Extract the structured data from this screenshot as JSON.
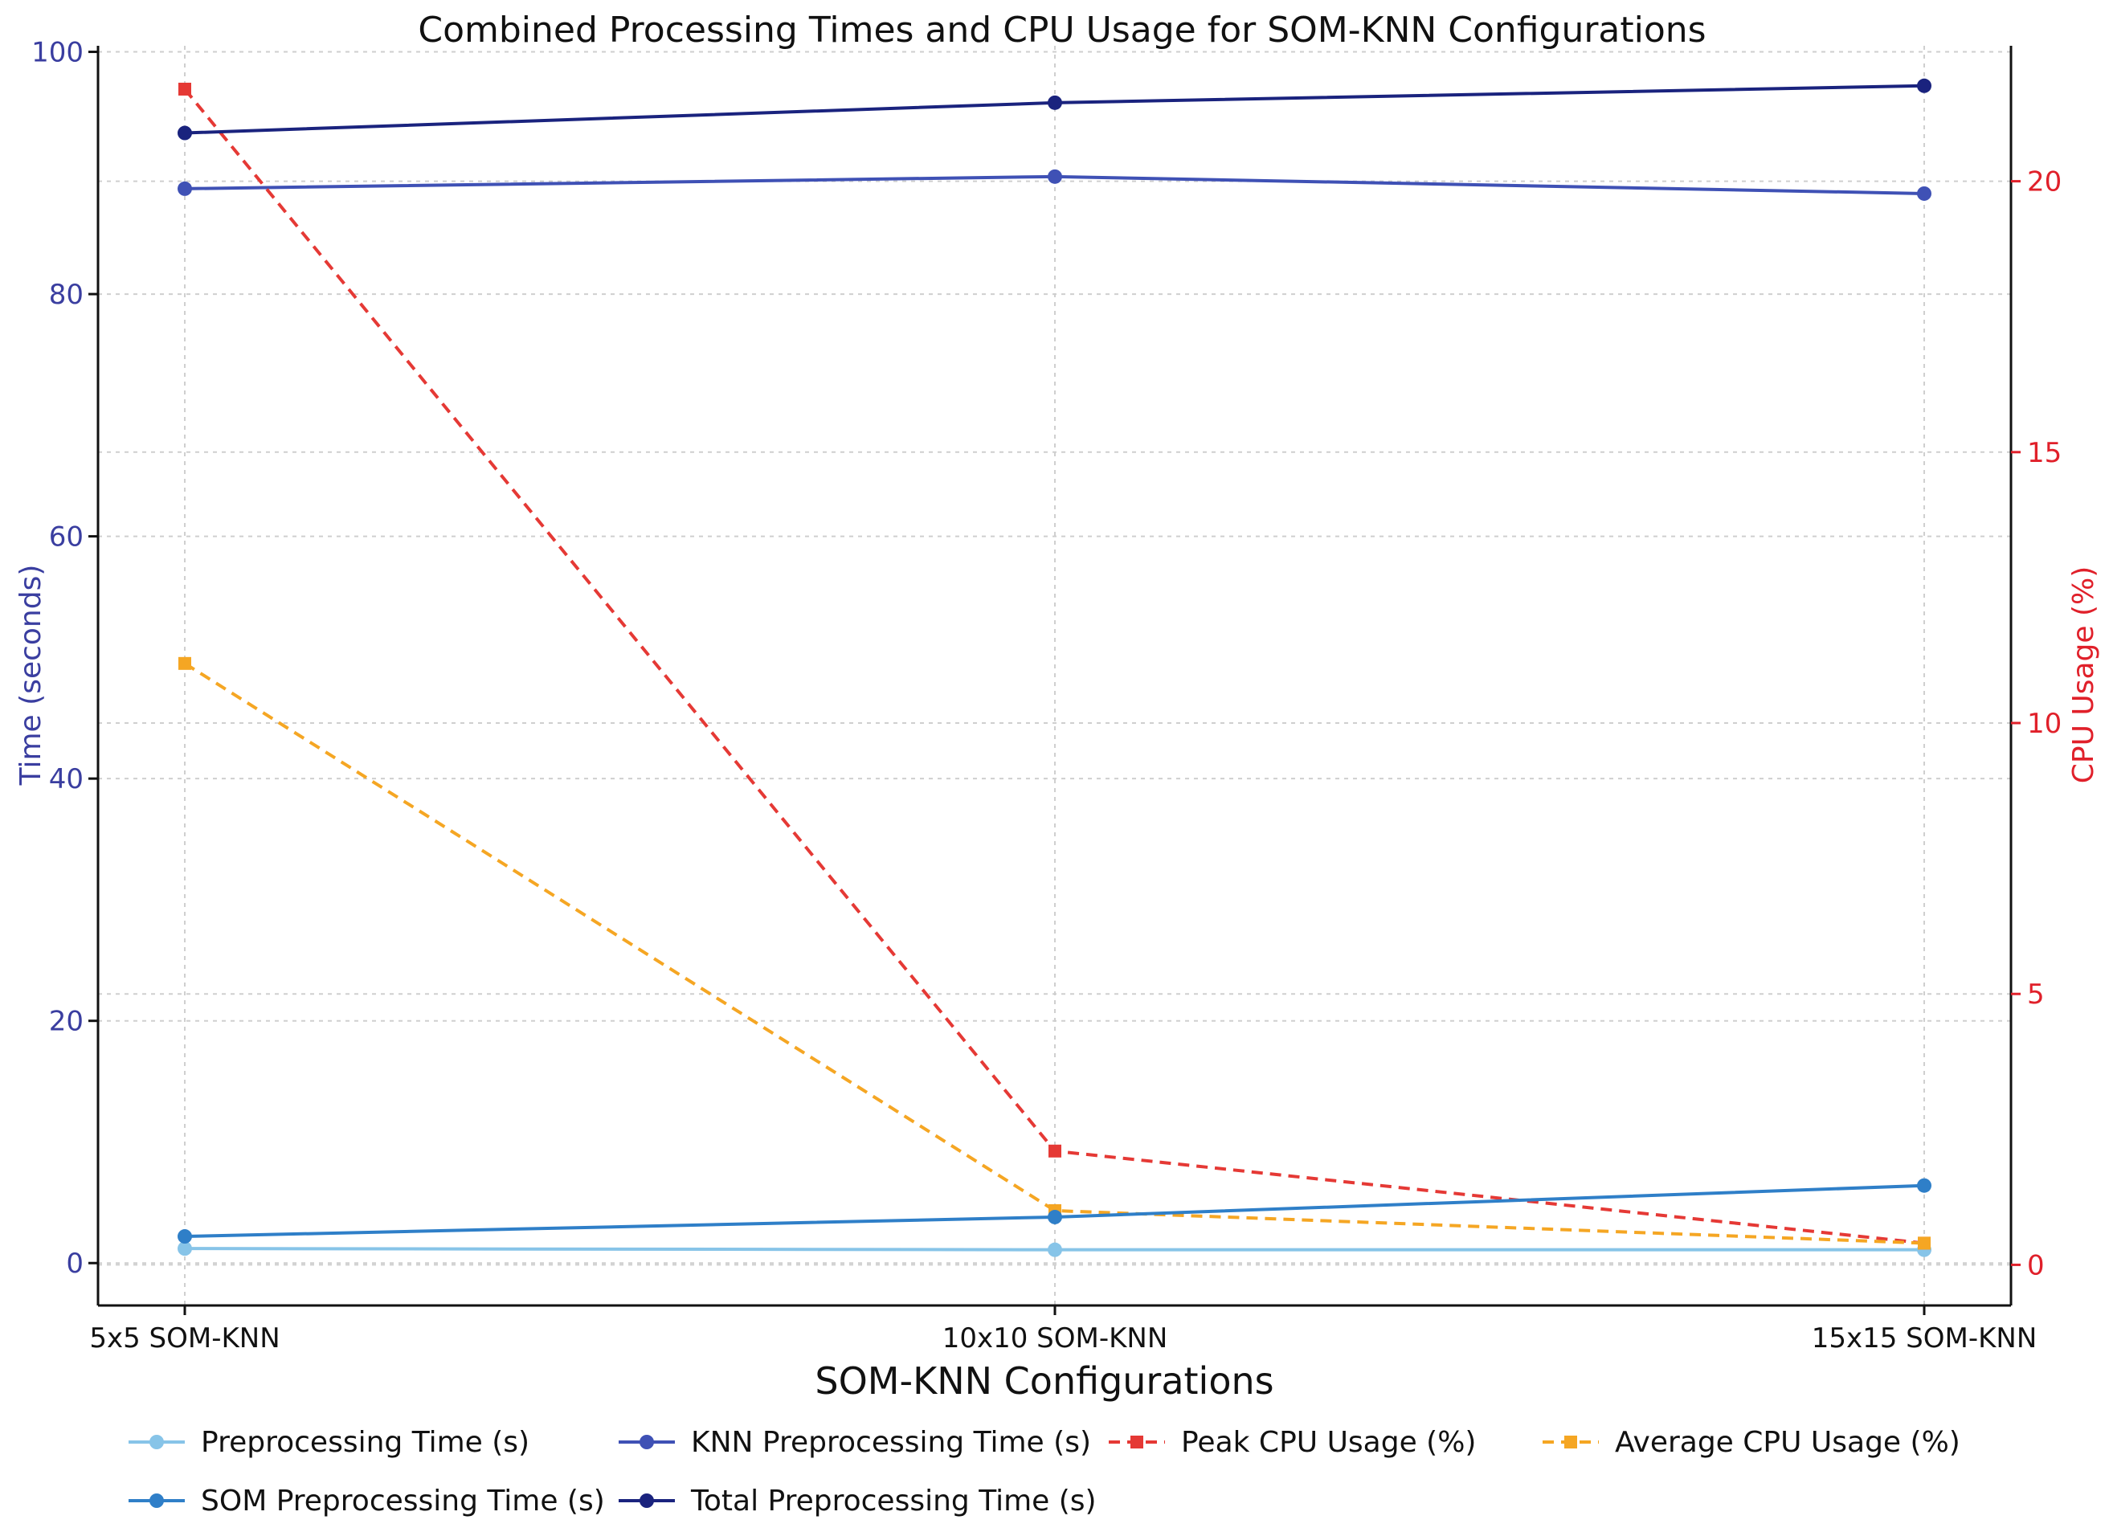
{
  "chart_data": {
    "type": "line",
    "title": "Combined Processing Times and CPU Usage for SOM-KNN Configurations",
    "xlabel": "SOM-KNN Configurations",
    "ylabel": "Time (seconds)",
    "y2label": "CPU Usage (%)",
    "categories": [
      "5x5 SOM-KNN",
      "10x10 SOM-KNN",
      "15x15 SOM-KNN"
    ],
    "ylim": [
      -3.5,
      100.5
    ],
    "y2lim": [
      -0.75,
      22.5
    ],
    "yticks": [
      0,
      20,
      40,
      60,
      80,
      100
    ],
    "y2ticks": [
      0,
      5,
      10,
      15,
      20
    ],
    "grid": true,
    "series": [
      {
        "name": "Preprocessing Time (s)",
        "axis": "left",
        "color": "#87c4e8",
        "style": "solid",
        "marker": "circle",
        "values": [
          1.2,
          1.1,
          1.1
        ]
      },
      {
        "name": "KNN Preprocessing Time (s)",
        "axis": "left",
        "color": "#3f51b5",
        "style": "solid",
        "marker": "circle",
        "values": [
          88.7,
          89.7,
          88.3
        ]
      },
      {
        "name": "Peak CPU Usage (%)",
        "axis": "right",
        "color": "#e53935",
        "style": "dashed",
        "marker": "square",
        "values": [
          21.7,
          2.1,
          0.4
        ]
      },
      {
        "name": "Average CPU Usage (%)",
        "axis": "right",
        "color": "#f5a623",
        "style": "dashed",
        "marker": "square",
        "values": [
          11.1,
          1.0,
          0.4
        ]
      },
      {
        "name": "SOM Preprocessing Time (s)",
        "axis": "left",
        "color": "#2f7fc8",
        "style": "solid",
        "marker": "circle",
        "values": [
          2.2,
          3.8,
          6.4
        ]
      },
      {
        "name": "Total Preprocessing Time (s)",
        "axis": "left",
        "color": "#1a237e",
        "style": "solid",
        "marker": "circle",
        "values": [
          93.3,
          95.8,
          97.2
        ]
      }
    ],
    "legend": "bottom"
  }
}
